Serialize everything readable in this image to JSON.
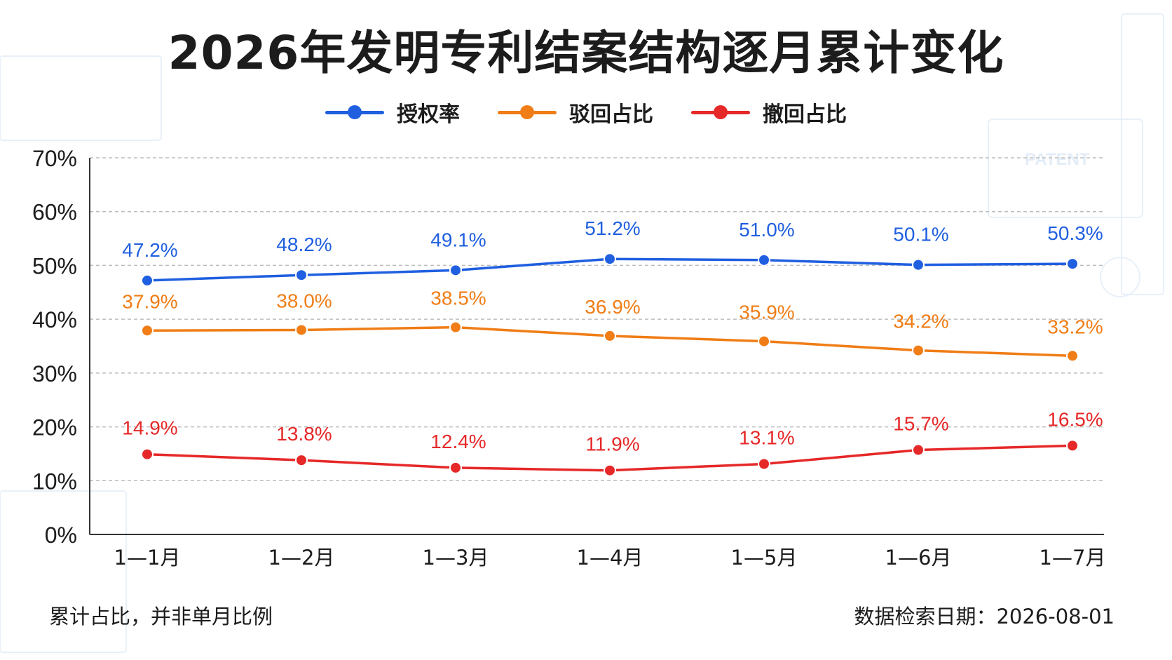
{
  "title": "2026年发明专利结案结构逐月累计变化",
  "footnote_left": "累计占比，并非单月比例",
  "footnote_right": "数据检索日期：2026-08-01",
  "watermark_text": "PATENT",
  "chart_data": {
    "type": "line",
    "title": "2026年发明专利结案结构逐月累计变化",
    "categories": [
      "1—1月",
      "1—2月",
      "1—3月",
      "1—4月",
      "1—5月",
      "1—6月",
      "1—7月"
    ],
    "ylim": [
      0,
      70
    ],
    "yticks": [
      0,
      10,
      20,
      30,
      40,
      50,
      60,
      70
    ],
    "ytick_labels": [
      "0%",
      "10%",
      "20%",
      "30%",
      "40%",
      "50%",
      "60%",
      "70%"
    ],
    "grid": true,
    "legend_position": "top-center",
    "series": [
      {
        "name": "授权率",
        "color": "#1f5fe0",
        "values": [
          47.2,
          48.2,
          49.1,
          51.2,
          51.0,
          50.1,
          50.3
        ],
        "labels": [
          "47.2%",
          "48.2%",
          "49.1%",
          "51.2%",
          "51.0%",
          "50.1%",
          "50.3%"
        ]
      },
      {
        "name": "驳回占比",
        "color": "#f07d16",
        "values": [
          37.9,
          38.0,
          38.5,
          36.9,
          35.9,
          34.2,
          33.2
        ],
        "labels": [
          "37.9%",
          "38.0%",
          "38.5%",
          "36.9%",
          "35.9%",
          "34.2%",
          "33.2%"
        ]
      },
      {
        "name": "撤回占比",
        "color": "#e62828",
        "values": [
          14.9,
          13.8,
          12.4,
          11.9,
          13.1,
          15.7,
          16.5
        ],
        "labels": [
          "14.9%",
          "13.8%",
          "12.4%",
          "11.9%",
          "13.1%",
          "15.7%",
          "16.5%"
        ]
      }
    ]
  }
}
